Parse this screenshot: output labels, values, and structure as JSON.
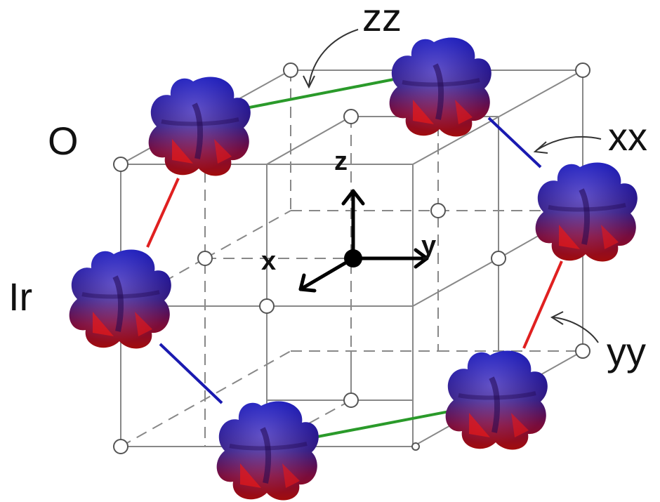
{
  "labels": {
    "oxygen": "O",
    "iridium": "Ir",
    "bond_zz": "zz",
    "bond_xx": "xx",
    "bond_yy": "yy",
    "axis_x": "x",
    "axis_y": "y",
    "axis_z": "z"
  },
  "colors": {
    "bond_zz": "#2a9a2a",
    "bond_xx": "#1a1ab0",
    "bond_yy": "#e02020",
    "orbital_top": "#1010d8",
    "orbital_bottom": "#d01010",
    "lattice": "#888888"
  }
}
